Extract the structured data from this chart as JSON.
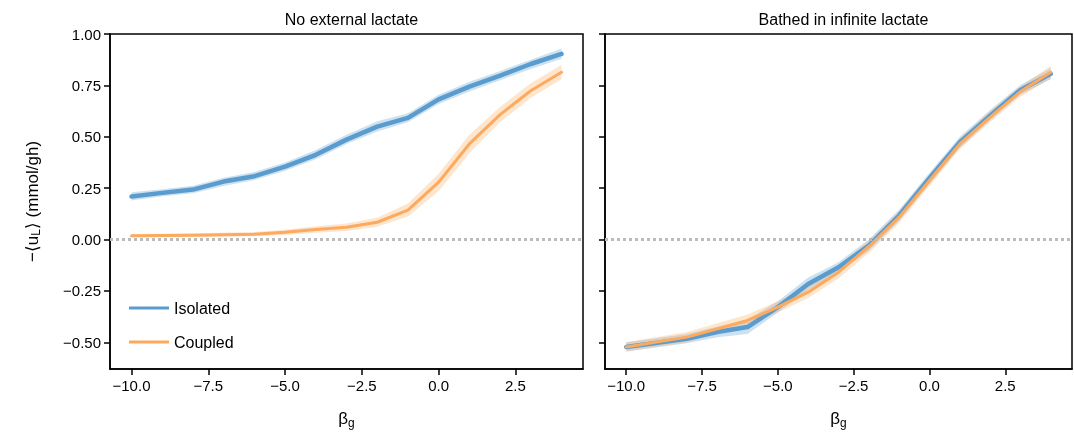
{
  "chart_data": [
    {
      "type": "line",
      "title": "No external lactate",
      "xlabel": "β$_{g}$",
      "ylabel": "−⟨u$_{L}$⟩ (mmol/gh)",
      "xlim": [
        -10.7,
        4.7
      ],
      "ylim": [
        -0.63,
        1.0
      ],
      "xticks": [
        {
          "value": -10,
          "label": "−10.0"
        },
        {
          "value": -7.5,
          "label": "−7.5"
        },
        {
          "value": -5,
          "label": "−5.0"
        },
        {
          "value": -2.5,
          "label": "−2.5"
        },
        {
          "value": 0,
          "label": "0.0"
        },
        {
          "value": 2.5,
          "label": "2.5"
        }
      ],
      "yticks": [
        {
          "value": -0.5,
          "label": "−0.50"
        },
        {
          "value": -0.25,
          "label": "−0.25"
        },
        {
          "value": 0,
          "label": "0.00"
        },
        {
          "value": 0.25,
          "label": "0.25"
        },
        {
          "value": 0.5,
          "label": "0.50"
        },
        {
          "value": 0.75,
          "label": "0.75"
        },
        {
          "value": 1,
          "label": "1.00"
        }
      ],
      "grid": false,
      "legend": "bottom left",
      "ref_lines": [
        {
          "axis": "y",
          "value": 0,
          "color": "#bbbbbb",
          "line_style": "dotted"
        }
      ],
      "series": [
        {
          "name": "Isolated",
          "color": "#5b9ccf",
          "x": [
            -10,
            -9,
            -8,
            -7,
            -6,
            -5,
            -4,
            -3,
            -2,
            -1,
            0,
            1,
            2,
            3,
            4
          ],
          "values": [
            0.209,
            0.227,
            0.243,
            0.282,
            0.308,
            0.355,
            0.412,
            0.486,
            0.549,
            0.592,
            0.682,
            0.744,
            0.797,
            0.854,
            0.903
          ],
          "lower": [
            0.19,
            0.21,
            0.225,
            0.26,
            0.29,
            0.335,
            0.39,
            0.465,
            0.525,
            0.57,
            0.66,
            0.72,
            0.775,
            0.83,
            0.88
          ],
          "upper": [
            0.23,
            0.245,
            0.262,
            0.3,
            0.328,
            0.375,
            0.435,
            0.51,
            0.575,
            0.615,
            0.705,
            0.768,
            0.82,
            0.875,
            0.93
          ]
        },
        {
          "name": "Coupled",
          "color": "#fdaa5e",
          "x": [
            -10,
            -8,
            -6,
            -5,
            -4,
            -3,
            -2,
            -1,
            0,
            1,
            2,
            3,
            4
          ],
          "values": [
            0.018,
            0.021,
            0.026,
            0.035,
            0.049,
            0.06,
            0.084,
            0.143,
            0.279,
            0.465,
            0.608,
            0.724,
            0.814
          ],
          "lower": [
            0.01,
            0.012,
            0.016,
            0.022,
            0.033,
            0.042,
            0.062,
            0.112,
            0.235,
            0.42,
            0.57,
            0.69,
            0.78
          ],
          "upper": [
            0.026,
            0.03,
            0.036,
            0.048,
            0.065,
            0.078,
            0.106,
            0.175,
            0.32,
            0.51,
            0.645,
            0.76,
            0.85
          ]
        }
      ]
    },
    {
      "type": "line",
      "title": "Bathed in infinite lactate",
      "xlabel": "β$_{g}$",
      "xlim": [
        -10.7,
        4.7
      ],
      "ylim": [
        -0.63,
        1.0
      ],
      "xticks": [
        {
          "value": -10,
          "label": "−10.0"
        },
        {
          "value": -7.5,
          "label": "−7.5"
        },
        {
          "value": -5,
          "label": "−5.0"
        },
        {
          "value": -2.5,
          "label": "−2.5"
        },
        {
          "value": 0,
          "label": "0.0"
        },
        {
          "value": 2.5,
          "label": "2.5"
        }
      ],
      "yticks": [
        {
          "value": -0.5,
          "label": null
        },
        {
          "value": -0.25,
          "label": null
        },
        {
          "value": 0,
          "label": null
        },
        {
          "value": 0.25,
          "label": null
        },
        {
          "value": 0.5,
          "label": null
        },
        {
          "value": 0.75,
          "label": null
        },
        {
          "value": 1,
          "label": null
        }
      ],
      "tick_labels": "x",
      "grid": false,
      "ref_lines": [
        {
          "axis": "y",
          "value": 0,
          "color": "#bbbbbb",
          "line_style": "dotted"
        }
      ],
      "series": [
        {
          "color": "#5b9ccf",
          "x": [
            -10,
            -8,
            -7,
            -6,
            -5,
            -4,
            -3,
            -2,
            -1,
            0,
            1,
            2,
            3,
            4
          ],
          "values": [
            -0.523,
            -0.483,
            -0.45,
            -0.426,
            -0.329,
            -0.216,
            -0.135,
            -0.029,
            0.117,
            0.298,
            0.473,
            0.603,
            0.728,
            0.806
          ],
          "lower": [
            -0.545,
            -0.505,
            -0.475,
            -0.46,
            -0.355,
            -0.245,
            -0.16,
            -0.055,
            0.09,
            0.27,
            0.445,
            0.58,
            0.705,
            0.78
          ],
          "upper": [
            -0.5,
            -0.46,
            -0.425,
            -0.39,
            -0.3,
            -0.185,
            -0.11,
            -0.0,
            0.145,
            0.325,
            0.5,
            0.63,
            0.752,
            0.835
          ]
        },
        {
          "color": "#fdaa5e",
          "x": [
            -10,
            -8,
            -6,
            -5,
            -4,
            -3,
            -2,
            -1,
            0,
            1,
            2,
            3,
            4
          ],
          "values": [
            -0.523,
            -0.475,
            -0.394,
            -0.329,
            -0.256,
            -0.159,
            -0.034,
            0.109,
            0.287,
            0.465,
            0.595,
            0.72,
            0.814
          ],
          "lower": [
            -0.545,
            -0.5,
            -0.42,
            -0.355,
            -0.285,
            -0.19,
            -0.065,
            0.08,
            0.26,
            0.44,
            0.57,
            0.695,
            0.785
          ],
          "upper": [
            -0.5,
            -0.45,
            -0.365,
            -0.3,
            -0.225,
            -0.13,
            -0.005,
            0.14,
            0.315,
            0.49,
            0.625,
            0.745,
            0.845
          ]
        }
      ]
    }
  ]
}
